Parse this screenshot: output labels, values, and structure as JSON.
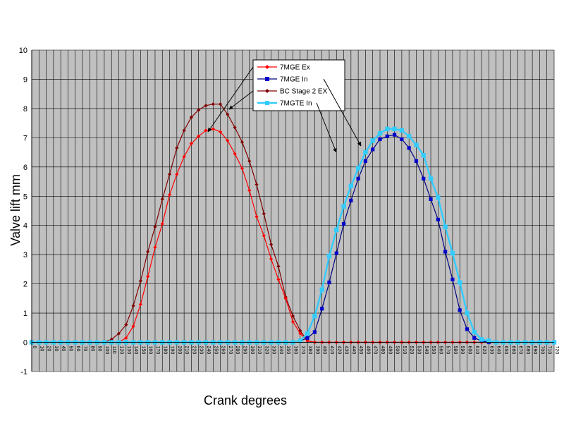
{
  "chart_data": {
    "type": "line",
    "title": "",
    "xlabel": "Crank degrees",
    "ylabel": "Valve lift mm",
    "xlim": [
      0,
      720
    ],
    "ylim": [
      -1,
      10
    ],
    "x_tick_step": 10,
    "y_tick_step": 1,
    "grid": true,
    "plot_background": "#c0c0c0",
    "legend_position": "top-center",
    "series": [
      {
        "name": "7MGE Ex",
        "color": "#ff0000",
        "line_color": "#ff0000",
        "marker": "diamond",
        "x": [
          0,
          10,
          20,
          30,
          40,
          50,
          60,
          70,
          80,
          90,
          100,
          110,
          120,
          130,
          140,
          150,
          160,
          170,
          180,
          190,
          200,
          210,
          220,
          230,
          240,
          250,
          260,
          270,
          280,
          290,
          300,
          310,
          320,
          330,
          340,
          350,
          360,
          370,
          380,
          390,
          400,
          410,
          420,
          430,
          440,
          450,
          460,
          470,
          480,
          490,
          500,
          510,
          520,
          530,
          540,
          550,
          560,
          570,
          580,
          590,
          600,
          610,
          620,
          630,
          640,
          650,
          660,
          670,
          680,
          690,
          700,
          710,
          720
        ],
        "y": [
          0,
          0,
          0,
          0,
          0,
          0,
          0,
          0,
          0,
          0,
          0,
          0,
          0,
          0.15,
          0.55,
          1.3,
          2.25,
          3.25,
          4.05,
          5.05,
          5.75,
          6.35,
          6.8,
          7.05,
          7.25,
          7.3,
          7.2,
          6.9,
          6.45,
          5.95,
          5.2,
          4.3,
          3.65,
          2.85,
          2.15,
          1.5,
          0.7,
          0.3,
          0.05,
          0,
          0,
          0,
          0,
          0,
          0,
          0,
          0,
          0,
          0,
          0,
          0,
          0,
          0,
          0,
          0,
          0,
          0,
          0,
          0,
          0,
          0,
          0,
          0,
          0,
          0,
          0,
          0,
          0,
          0,
          0,
          0,
          0,
          0
        ]
      },
      {
        "name": "7MGE In",
        "color": "#0000cc",
        "line_color": "#000080",
        "marker": "square",
        "x": [
          0,
          10,
          20,
          30,
          40,
          50,
          60,
          70,
          80,
          90,
          100,
          110,
          120,
          130,
          140,
          150,
          160,
          170,
          180,
          190,
          200,
          210,
          220,
          230,
          240,
          250,
          260,
          270,
          280,
          290,
          300,
          310,
          320,
          330,
          340,
          350,
          360,
          370,
          380,
          390,
          400,
          410,
          420,
          430,
          440,
          450,
          460,
          470,
          480,
          490,
          500,
          510,
          520,
          530,
          540,
          550,
          560,
          570,
          580,
          590,
          600,
          610,
          620,
          630,
          640,
          650,
          660,
          670,
          680,
          690,
          700,
          710,
          720
        ],
        "y": [
          0,
          0,
          0,
          0,
          0,
          0,
          0,
          0,
          0,
          0,
          0,
          0,
          0,
          0,
          0,
          0,
          0,
          0,
          0,
          0,
          0,
          0,
          0,
          0,
          0,
          0,
          0,
          0,
          0,
          0,
          0,
          0,
          0,
          0,
          0,
          0,
          0,
          0.05,
          0.15,
          0.35,
          1.15,
          2.05,
          3.05,
          4.05,
          4.85,
          5.6,
          6.2,
          6.6,
          6.95,
          7.05,
          7.1,
          6.95,
          6.65,
          6.2,
          5.6,
          4.9,
          4.2,
          3.1,
          2.15,
          1.1,
          0.45,
          0.15,
          0.05,
          0,
          0,
          0,
          0,
          0,
          0,
          0,
          0,
          0,
          0
        ]
      },
      {
        "name": "BC Stage 2 EX",
        "color": "#800000",
        "line_color": "#800000",
        "marker": "diamond",
        "x": [
          0,
          10,
          20,
          30,
          40,
          50,
          60,
          70,
          80,
          90,
          100,
          110,
          120,
          130,
          140,
          150,
          160,
          170,
          180,
          190,
          200,
          210,
          220,
          230,
          240,
          250,
          260,
          270,
          280,
          290,
          300,
          310,
          320,
          330,
          340,
          350,
          360,
          370,
          380,
          390,
          400,
          410,
          420,
          430,
          440,
          450,
          460,
          470,
          480,
          490,
          500,
          510,
          520,
          530,
          540,
          550,
          560,
          570,
          580,
          590,
          600,
          610,
          620,
          630,
          640,
          650,
          660,
          670,
          680,
          690,
          700,
          710,
          720
        ],
        "y": [
          0,
          0,
          0,
          0,
          0,
          0,
          0,
          0,
          0,
          0,
          0,
          0.1,
          0.3,
          0.6,
          1.25,
          2.1,
          3.1,
          3.95,
          4.9,
          5.75,
          6.65,
          7.25,
          7.7,
          7.95,
          8.1,
          8.15,
          8.15,
          7.8,
          7.35,
          6.85,
          6.2,
          5.4,
          4.4,
          3.35,
          2.6,
          1.55,
          0.9,
          0.4,
          0.05,
          0,
          0,
          0,
          0,
          0,
          0,
          0,
          0,
          0,
          0,
          0,
          0,
          0,
          0,
          0,
          0,
          0,
          0,
          0,
          0,
          0,
          0,
          0,
          0,
          0,
          0,
          0,
          0,
          0,
          0,
          0,
          0,
          0,
          0
        ]
      },
      {
        "name": "7MGTE In",
        "color": "#33ccff",
        "line_color": "#33ccff",
        "marker": "square",
        "x": [
          0,
          10,
          20,
          30,
          40,
          50,
          60,
          70,
          80,
          90,
          100,
          110,
          120,
          130,
          140,
          150,
          160,
          170,
          180,
          190,
          200,
          210,
          220,
          230,
          240,
          250,
          260,
          270,
          280,
          290,
          300,
          310,
          320,
          330,
          340,
          350,
          360,
          370,
          380,
          390,
          400,
          410,
          420,
          430,
          440,
          450,
          460,
          470,
          480,
          490,
          500,
          510,
          520,
          530,
          540,
          550,
          560,
          570,
          580,
          590,
          600,
          610,
          620,
          630,
          640,
          650,
          660,
          670,
          680,
          690,
          700,
          710,
          720
        ],
        "y": [
          0,
          0,
          0,
          0,
          0,
          0,
          0,
          0,
          0,
          0,
          0,
          0,
          0,
          0,
          0,
          0,
          0,
          0,
          0,
          0,
          0,
          0,
          0,
          0,
          0,
          0,
          0,
          0,
          0,
          0,
          0,
          0,
          0,
          0,
          0,
          0,
          0,
          0.05,
          0.3,
          0.9,
          1.8,
          2.95,
          3.85,
          4.65,
          5.35,
          5.95,
          6.5,
          6.9,
          7.15,
          7.3,
          7.3,
          7.25,
          7.05,
          6.75,
          6.4,
          5.6,
          4.95,
          3.95,
          3.05,
          2.05,
          1.0,
          0.35,
          0.1,
          0.05,
          0,
          0,
          0,
          0,
          0,
          0,
          0,
          0,
          0
        ]
      }
    ]
  }
}
